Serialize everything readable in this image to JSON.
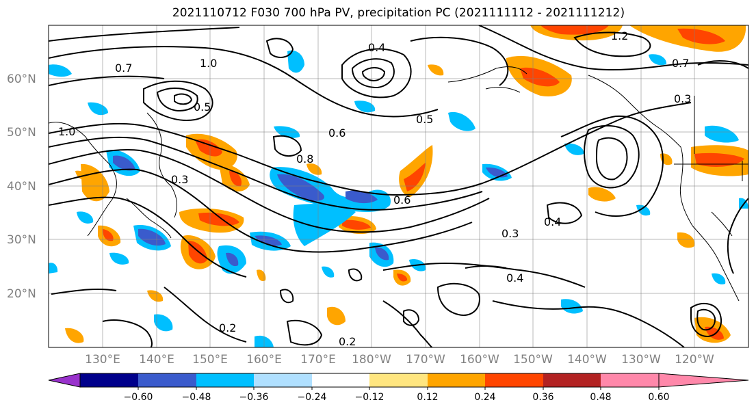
{
  "title": "2021110712 F030 700 hPa PV, precipitation PC (2021111112 - 2021111212)",
  "map": {
    "lat_ticks": [
      "60°N",
      "50°N",
      "40°N",
      "30°N",
      "20°N"
    ],
    "lon_ticks": [
      "130°E",
      "140°E",
      "150°E",
      "160°E",
      "170°E",
      "180°W",
      "170°W",
      "160°W",
      "150°W",
      "140°W",
      "130°W",
      "120°W"
    ],
    "contour_labels": [
      "0.7",
      "1.0",
      "0.5",
      "0.3",
      "0.8",
      "0.6",
      "0.4",
      "0.2",
      "1.2",
      "0.7",
      "0.4",
      "0.3",
      "0.2",
      "0.4",
      "0.3",
      "1.0",
      "0.5",
      "0.6"
    ]
  },
  "colorbar": {
    "ticks": [
      "−0.60",
      "−0.48",
      "−0.36",
      "−0.24",
      "−0.12",
      "0.12",
      "0.24",
      "0.36",
      "0.48",
      "0.60"
    ],
    "colors": [
      "#9932cc",
      "#00008b",
      "#3a5bcc",
      "#00bfff",
      "#b0e0ff",
      "#ffffff",
      "#ffe680",
      "#ffa500",
      "#ff4500",
      "#b22222",
      "#ff88aa"
    ]
  }
}
